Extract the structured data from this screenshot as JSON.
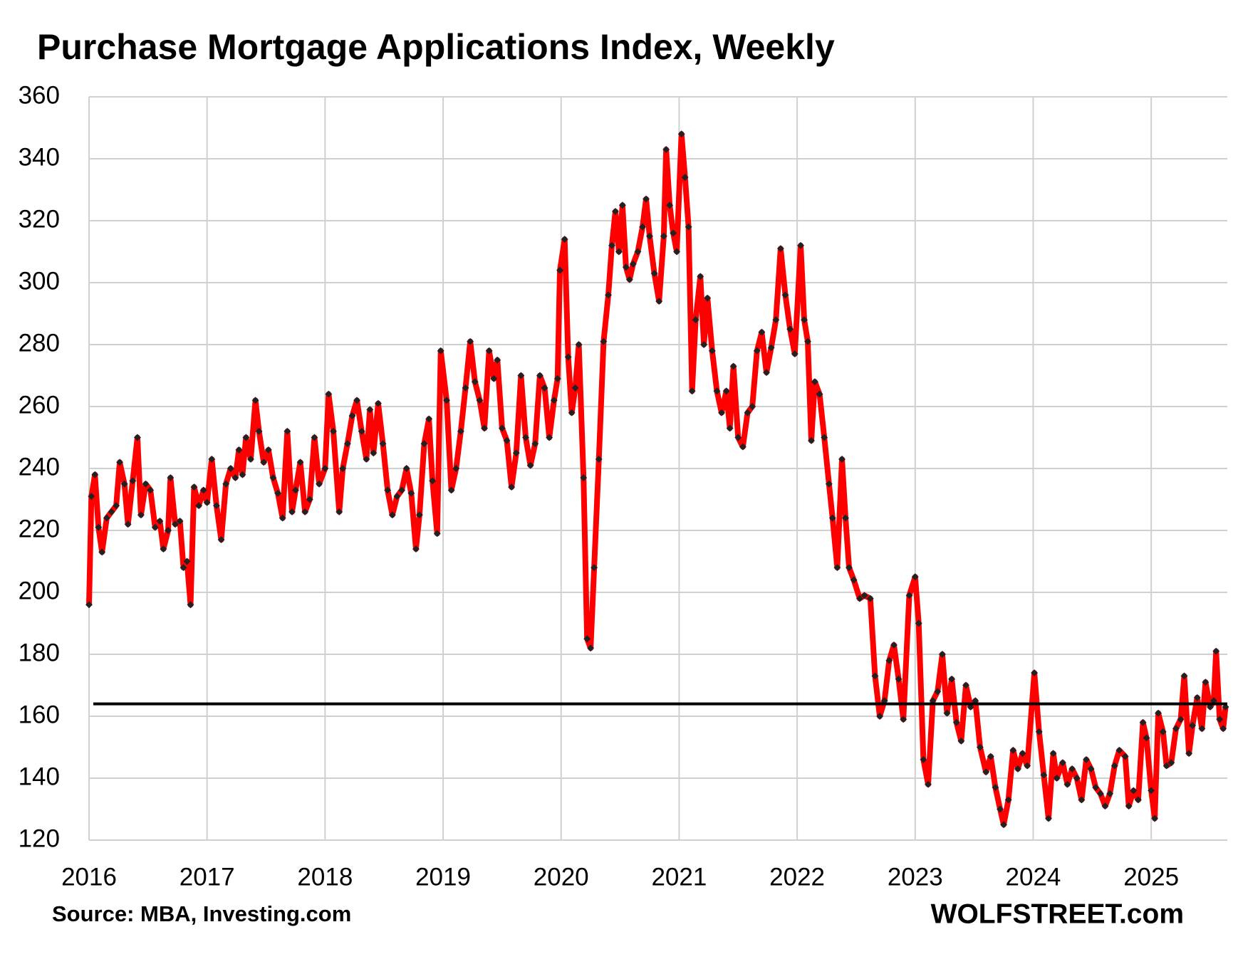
{
  "chart_data": {
    "type": "line",
    "title": "Purchase Mortgage Applications Index, Weekly",
    "source": "Source: MBA, Investing.com",
    "credit": "WOLFSTREET.com",
    "xlim": [
      2016,
      2025.645
    ],
    "xticks": [
      2016,
      2017,
      2018,
      2019,
      2020,
      2021,
      2022,
      2023,
      2024,
      2025
    ],
    "ylim": [
      120,
      360
    ],
    "yticks": [
      120,
      140,
      160,
      180,
      200,
      220,
      240,
      260,
      280,
      300,
      320,
      340,
      360
    ],
    "grid": true,
    "reference_line": 164,
    "reference_color": "#000000",
    "series": [
      {
        "color": "#ff0000",
        "marker_color": "#222222",
        "x": [
          2016.0,
          2016.02,
          2016.05,
          2016.08,
          2016.11,
          2016.15,
          2016.19,
          2016.23,
          2016.26,
          2016.3,
          2016.33,
          2016.37,
          2016.41,
          2016.44,
          2016.48,
          2016.52,
          2016.56,
          2016.6,
          2016.63,
          2016.67,
          2016.69,
          2016.73,
          2016.77,
          2016.8,
          2016.83,
          2016.86,
          2016.89,
          2016.93,
          2016.97,
          2017.0,
          2017.04,
          2017.08,
          2017.12,
          2017.16,
          2017.2,
          2017.24,
          2017.27,
          2017.3,
          2017.33,
          2017.37,
          2017.41,
          2017.44,
          2017.48,
          2017.52,
          2017.56,
          2017.6,
          2017.64,
          2017.68,
          2017.72,
          2017.75,
          2017.79,
          2017.83,
          2017.87,
          2017.91,
          2017.95,
          2018.0,
          2018.03,
          2018.07,
          2018.12,
          2018.15,
          2018.19,
          2018.23,
          2018.27,
          2018.31,
          2018.35,
          2018.38,
          2018.41,
          2018.45,
          2018.49,
          2018.53,
          2018.57,
          2018.61,
          2018.65,
          2018.69,
          2018.73,
          2018.77,
          2018.8,
          2018.84,
          2018.88,
          2018.91,
          2018.95,
          2018.98,
          2019.03,
          2019.07,
          2019.11,
          2019.15,
          2019.19,
          2019.23,
          2019.27,
          2019.31,
          2019.35,
          2019.39,
          2019.43,
          2019.46,
          2019.5,
          2019.54,
          2019.58,
          2019.62,
          2019.66,
          2019.7,
          2019.74,
          2019.78,
          2019.82,
          2019.86,
          2019.9,
          2019.94,
          2019.97,
          2019.99,
          2020.03,
          2020.06,
          2020.09,
          2020.12,
          2020.15,
          2020.19,
          2020.22,
          2020.25,
          2020.28,
          2020.32,
          2020.36,
          2020.4,
          2020.43,
          2020.46,
          2020.49,
          2020.52,
          2020.55,
          2020.58,
          2020.61,
          2020.65,
          2020.69,
          2020.72,
          2020.75,
          2020.79,
          2020.83,
          2020.87,
          2020.89,
          2020.92,
          2020.95,
          2020.98,
          2021.02,
          2021.05,
          2021.08,
          2021.11,
          2021.14,
          2021.18,
          2021.21,
          2021.24,
          2021.28,
          2021.32,
          2021.36,
          2021.4,
          2021.43,
          2021.46,
          2021.5,
          2021.54,
          2021.58,
          2021.62,
          2021.66,
          2021.7,
          2021.74,
          2021.78,
          2021.82,
          2021.86,
          2021.9,
          2021.94,
          2021.98,
          2022.03,
          2022.06,
          2022.09,
          2022.12,
          2022.15,
          2022.19,
          2022.23,
          2022.27,
          2022.3,
          2022.34,
          2022.38,
          2022.41,
          2022.44,
          2022.48,
          2022.53,
          2022.57,
          2022.62,
          2022.66,
          2022.7,
          2022.74,
          2022.78,
          2022.82,
          2022.86,
          2022.9,
          2022.95,
          2023.0,
          2023.03,
          2023.07,
          2023.11,
          2023.15,
          2023.19,
          2023.23,
          2023.27,
          2023.31,
          2023.35,
          2023.39,
          2023.43,
          2023.47,
          2023.51,
          2023.55,
          2023.6,
          2023.64,
          2023.68,
          2023.72,
          2023.75,
          2023.79,
          2023.83,
          2023.87,
          2023.91,
          2023.95,
          2024.01,
          2024.05,
          2024.09,
          2024.13,
          2024.17,
          2024.2,
          2024.25,
          2024.29,
          2024.33,
          2024.37,
          2024.41,
          2024.45,
          2024.49,
          2024.53,
          2024.57,
          2024.61,
          2024.65,
          2024.69,
          2024.73,
          2024.78,
          2024.81,
          2024.85,
          2024.89,
          2024.93,
          2024.96,
          2025.0,
          2025.03,
          2025.06,
          2025.1,
          2025.13,
          2025.17,
          2025.21,
          2025.25,
          2025.28,
          2025.32,
          2025.35,
          2025.39,
          2025.43,
          2025.46,
          2025.5,
          2025.53,
          2025.55,
          2025.58,
          2025.61,
          2025.63
        ],
        "values": [
          196,
          231,
          238,
          221,
          213,
          224,
          226,
          228,
          242,
          235,
          222,
          236,
          250,
          225,
          235,
          233,
          221,
          223,
          214,
          220,
          237,
          222,
          223,
          208,
          210,
          196,
          234,
          228,
          233,
          229,
          243,
          228,
          217,
          235,
          240,
          237,
          246,
          238,
          250,
          243,
          262,
          252,
          242,
          246,
          237,
          232,
          224,
          252,
          226,
          233,
          242,
          226,
          230,
          250,
          235,
          240,
          264,
          252,
          226,
          240,
          248,
          257,
          262,
          252,
          243,
          259,
          245,
          261,
          248,
          233,
          225,
          231,
          233,
          240,
          232,
          214,
          225,
          248,
          256,
          236,
          219,
          278,
          262,
          233,
          240,
          252,
          266,
          281,
          268,
          262,
          253,
          278,
          269,
          275,
          253,
          249,
          234,
          245,
          270,
          250,
          241,
          248,
          270,
          266,
          250,
          262,
          269,
          304,
          314,
          276,
          258,
          266,
          280,
          237,
          185,
          182,
          208,
          243,
          281,
          296,
          312,
          323,
          310,
          325,
          305,
          301,
          306,
          310,
          318,
          327,
          315,
          303,
          294,
          315,
          343,
          325,
          316,
          310,
          348,
          334,
          318,
          265,
          288,
          302,
          280,
          295,
          278,
          265,
          258,
          265,
          253,
          273,
          250,
          247,
          258,
          260,
          278,
          284,
          271,
          279,
          288,
          311,
          296,
          285,
          277,
          312,
          288,
          281,
          249,
          268,
          264,
          250,
          235,
          224,
          208,
          243,
          224,
          208,
          204,
          198,
          199,
          198,
          173,
          160,
          165,
          178,
          183,
          172,
          159,
          199,
          205,
          190,
          146,
          138,
          165,
          168,
          180,
          161,
          172,
          158,
          152,
          170,
          163,
          165,
          150,
          142,
          147,
          137,
          130,
          125,
          133,
          149,
          143,
          148,
          144,
          174,
          155,
          141,
          127,
          148,
          140,
          145,
          138,
          143,
          140,
          133,
          146,
          143,
          137,
          135,
          131,
          135,
          144,
          149,
          147,
          131,
          136,
          133,
          158,
          153,
          136,
          127,
          161,
          155,
          144,
          145,
          156,
          159,
          173,
          148,
          157,
          166,
          156,
          171,
          163,
          165,
          181,
          159,
          156,
          163
        ]
      }
    ]
  }
}
